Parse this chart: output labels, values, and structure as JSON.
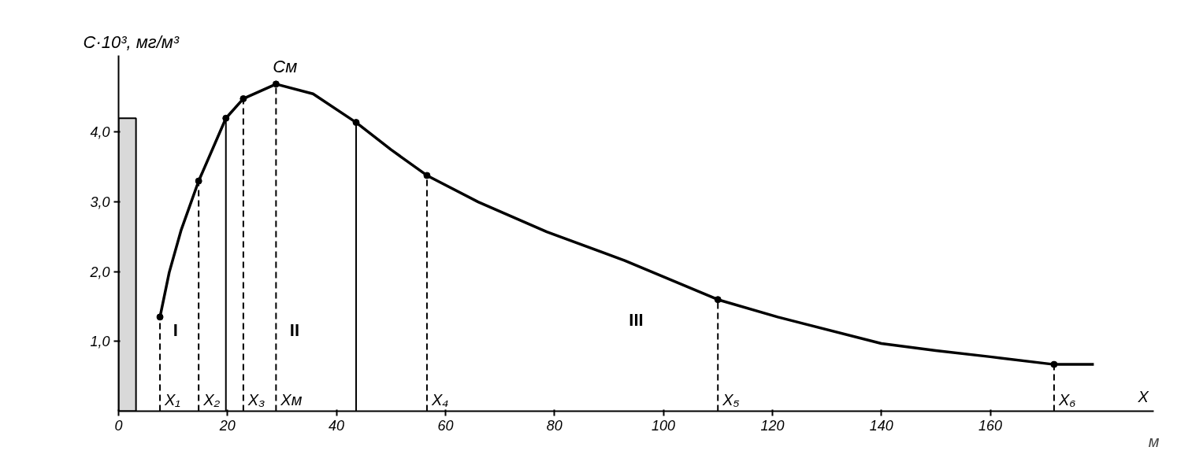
{
  "chart_data": {
    "type": "line",
    "ylabel": "C·10³, мг/м³",
    "xlabel": "X",
    "xlim": [
      0,
      190
    ],
    "ylim": [
      0,
      5.1
    ],
    "xticks": [
      0,
      20,
      40,
      60,
      80,
      100,
      120,
      140,
      160
    ],
    "yticks": [
      {
        "value": 1,
        "label": "1,0"
      },
      {
        "value": 2,
        "label": "2,0"
      },
      {
        "value": 3,
        "label": "3,0"
      },
      {
        "value": 4,
        "label": "4,0"
      }
    ],
    "grid": false,
    "series": [
      {
        "type": "bar",
        "color": "#d9d9d9",
        "x": [
          1.6
        ],
        "values": [
          4.2
        ]
      },
      {
        "color": "#000000",
        "line_style": "solid",
        "x": [
          7.6,
          9.3,
          11.5,
          14.7,
          19.7,
          22.9,
          28.9,
          35.7,
          43.6,
          50,
          56.6,
          66,
          78.6,
          92.9,
          110,
          121,
          140,
          150,
          160,
          171.7,
          179
        ],
        "values": [
          1.35,
          1.99,
          2.6,
          3.3,
          4.2,
          4.48,
          4.69,
          4.55,
          4.14,
          3.75,
          3.38,
          3.0,
          2.57,
          2.16,
          1.6,
          1.35,
          0.97,
          0.87,
          0.78,
          0.67,
          0.67
        ]
      },
      {
        "type": "scatter",
        "color": "#000000",
        "marker": "circle",
        "x": [
          7.6,
          14.7,
          19.7,
          22.9,
          28.9,
          43.6,
          56.6,
          110,
          171.7
        ],
        "values": [
          1.35,
          3.3,
          4.2,
          4.48,
          4.69,
          4.14,
          3.38,
          1.6,
          0.67
        ]
      }
    ],
    "ref_lines": [
      {
        "axis": "x",
        "value": 7.6,
        "label": "X₁",
        "line_style": "dashed"
      },
      {
        "axis": "x",
        "value": 14.7,
        "label": "X₂",
        "line_style": "dashed"
      },
      {
        "axis": "x",
        "value": 19.7,
        "label": null,
        "line_style": "solid"
      },
      {
        "axis": "x",
        "value": 22.9,
        "label": "X₃",
        "line_style": "dashed"
      },
      {
        "axis": "x",
        "value": 28.9,
        "label": "Xм",
        "line_style": "dashed"
      },
      {
        "axis": "x",
        "value": 43.6,
        "label": null,
        "line_style": "solid"
      },
      {
        "axis": "x",
        "value": 56.6,
        "label": "X₄",
        "line_style": "dashed"
      },
      {
        "axis": "x",
        "value": 110,
        "label": "X₅",
        "line_style": "dashed"
      },
      {
        "axis": "x",
        "value": 171.7,
        "label": "X₆",
        "line_style": "dashed"
      }
    ],
    "annotations": [
      {
        "text": "Cм",
        "x": 28.9,
        "y": 4.69
      },
      "I",
      "II",
      "III",
      "м"
    ]
  }
}
